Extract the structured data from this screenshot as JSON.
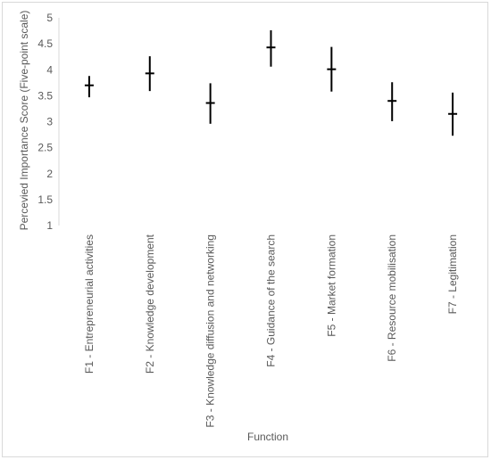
{
  "chart_data": {
    "type": "error-bar",
    "xlabel": "Function",
    "ylabel": "Percevied Importance Score (Five-point scale)",
    "ylim": [
      1,
      5
    ],
    "yticks": [
      1,
      1.5,
      2,
      2.5,
      3,
      3.5,
      4,
      4.5,
      5
    ],
    "ytick_labels": [
      "1",
      "1.5",
      "2",
      "2.5",
      "3",
      "3.5",
      "4",
      "4.5",
      "5"
    ],
    "grid": false,
    "marker_color": "#000000",
    "categories": [
      "F1 - Entrepreneurial activities",
      "F2 - Knowledge development",
      "F3 - Knowledge diffusion and networking",
      "F4 - Guidance of the search",
      "F5 - Market formation",
      "F6 - Resource mobilisation",
      "F7 - Legitimation"
    ],
    "series": [
      {
        "mean": [
          3.7,
          3.93,
          3.36,
          4.43,
          4.01,
          3.4,
          3.15
        ],
        "low": [
          3.47,
          3.59,
          2.96,
          4.06,
          3.58,
          3.01,
          2.73
        ],
        "high": [
          3.88,
          4.26,
          3.74,
          4.76,
          4.44,
          3.76,
          3.56
        ]
      }
    ]
  }
}
